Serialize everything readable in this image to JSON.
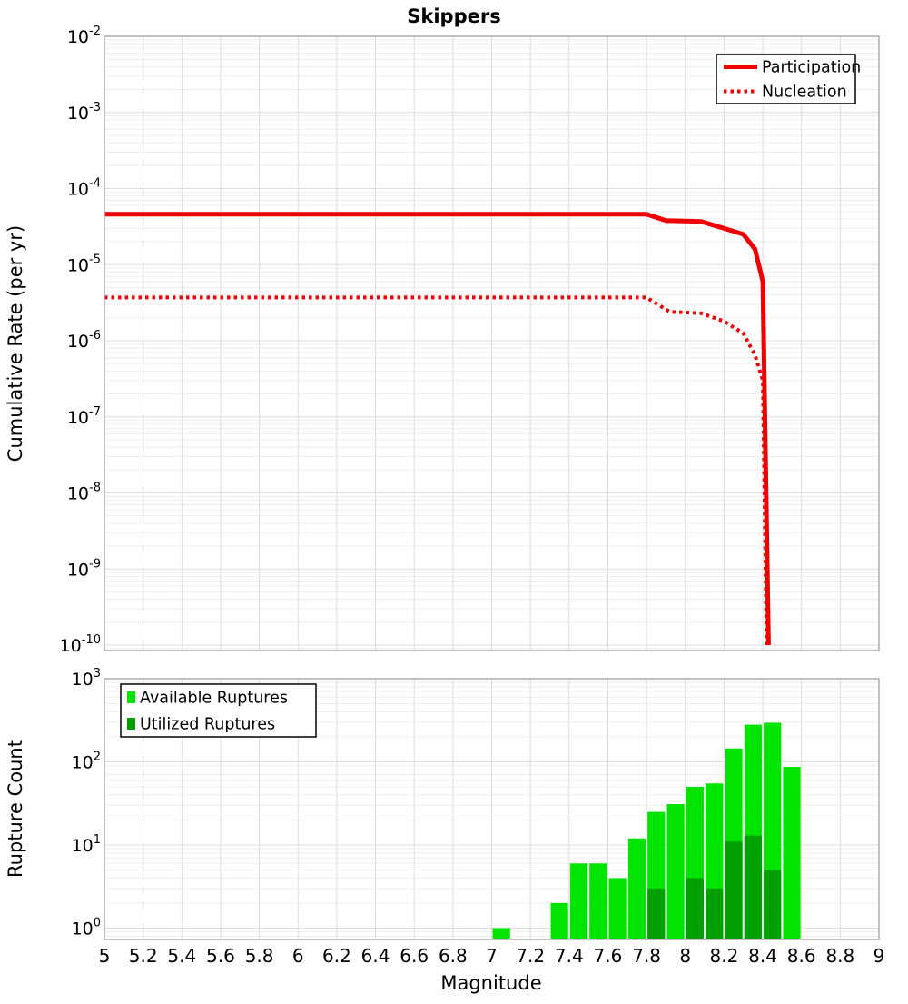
{
  "title": "Skippers",
  "colors": {
    "line_red": "#ee0000",
    "available_green": "#00e400",
    "utilized_green": "#00a000",
    "grid_major": "#dddddd",
    "grid_minor": "#ededed",
    "frame": "#b0b0b0",
    "background": "#ffffff",
    "text": "#000000",
    "legend_border": "#000000"
  },
  "chart_data": [
    {
      "type": "line",
      "title": "Skippers",
      "xlabel": "",
      "ylabel": "Cumulative Rate (per yr)",
      "xlim": [
        5,
        9
      ],
      "ylog_range": [
        -10.08,
        -2
      ],
      "grid": true,
      "x_tick_values": [
        5,
        5.2,
        5.4,
        5.6,
        5.8,
        6,
        6.2,
        6.4,
        6.6,
        6.8,
        7,
        7.2,
        7.4,
        7.6,
        7.8,
        8,
        8.2,
        8.4,
        8.6,
        8.8,
        9
      ],
      "x_tick_labels": [
        "5",
        "5.2",
        "5.4",
        "5.6",
        "5.8",
        "6",
        "6.2",
        "6.4",
        "6.6",
        "6.8",
        "7",
        "7.2",
        "7.4",
        "7.6",
        "7.8",
        "8",
        "8.2",
        "8.4",
        "8.6",
        "8.8",
        "9"
      ],
      "y_tick_exponents": [
        -2,
        -3,
        -4,
        -5,
        -6,
        -7,
        -8,
        -9,
        -10
      ],
      "legend": {
        "position": "top-right",
        "entries": [
          {
            "label": "Participation",
            "swatch": "line-solid",
            "color": "#ee0000"
          },
          {
            "label": "Nucleation",
            "swatch": "line-dotted",
            "color": "#ee0000"
          }
        ]
      },
      "series": [
        {
          "name": "Participation",
          "style": "solid",
          "color": "#ee0000",
          "points": [
            [
              5,
              4.6e-05
            ],
            [
              7.8,
              4.6e-05
            ],
            [
              7.9,
              3.8e-05
            ],
            [
              8.08,
              3.7e-05
            ],
            [
              8.2,
              3e-05
            ],
            [
              8.3,
              2.5e-05
            ],
            [
              8.36,
              1.6e-05
            ],
            [
              8.4,
              6e-06
            ],
            [
              8.43,
              1e-10
            ]
          ]
        },
        {
          "name": "Nucleation",
          "style": "dotted",
          "color": "#ee0000",
          "points": [
            [
              5,
              3.7e-06
            ],
            [
              7.8,
              3.7e-06
            ],
            [
              7.92,
              2.4e-06
            ],
            [
              8.08,
              2.3e-06
            ],
            [
              8.2,
              1.8e-06
            ],
            [
              8.3,
              1.25e-06
            ],
            [
              8.36,
              6.5e-07
            ],
            [
              8.4,
              3e-07
            ],
            [
              8.42,
              1e-10
            ]
          ]
        }
      ]
    },
    {
      "type": "bar",
      "title": "",
      "xlabel": "Magnitude",
      "ylabel": "Rupture Count",
      "xlim": [
        5,
        9
      ],
      "ylog_range": [
        -0.13,
        3
      ],
      "grid": true,
      "bar_width": 0.09,
      "x_tick_values": [
        5,
        5.2,
        5.4,
        5.6,
        5.8,
        6,
        6.2,
        6.4,
        6.6,
        6.8,
        7,
        7.2,
        7.4,
        7.6,
        7.8,
        8,
        8.2,
        8.4,
        8.6,
        8.8,
        9
      ],
      "x_tick_labels": [
        "5",
        "5.2",
        "5.4",
        "5.6",
        "5.8",
        "6",
        "6.2",
        "6.4",
        "6.6",
        "6.8",
        "7",
        "7.2",
        "7.4",
        "7.6",
        "7.8",
        "8",
        "8.2",
        "8.4",
        "8.6",
        "8.8",
        "9"
      ],
      "y_tick_exponents": [
        3,
        2,
        1,
        0
      ],
      "legend": {
        "position": "top-left",
        "entries": [
          {
            "label": "Available Ruptures",
            "swatch": "rect",
            "color": "#00e400"
          },
          {
            "label": "Utilized Ruptures",
            "swatch": "rect",
            "color": "#00a000"
          }
        ]
      },
      "series": [
        {
          "name": "Available Ruptures",
          "color": "#00e400",
          "bins": [
            [
              7.05,
              1
            ],
            [
              7.35,
              2
            ],
            [
              7.45,
              6
            ],
            [
              7.55,
              6
            ],
            [
              7.65,
              4
            ],
            [
              7.75,
              12
            ],
            [
              7.85,
              25
            ],
            [
              7.95,
              31
            ],
            [
              8.05,
              50
            ],
            [
              8.15,
              55
            ],
            [
              8.25,
              145
            ],
            [
              8.35,
              280
            ],
            [
              8.45,
              295
            ],
            [
              8.55,
              87
            ]
          ]
        },
        {
          "name": "Utilized Ruptures",
          "color": "#00a000",
          "bins": [
            [
              7.85,
              3
            ],
            [
              8.05,
              4
            ],
            [
              8.15,
              3
            ],
            [
              8.25,
              11
            ],
            [
              8.35,
              13
            ],
            [
              8.45,
              5
            ]
          ]
        }
      ]
    }
  ]
}
